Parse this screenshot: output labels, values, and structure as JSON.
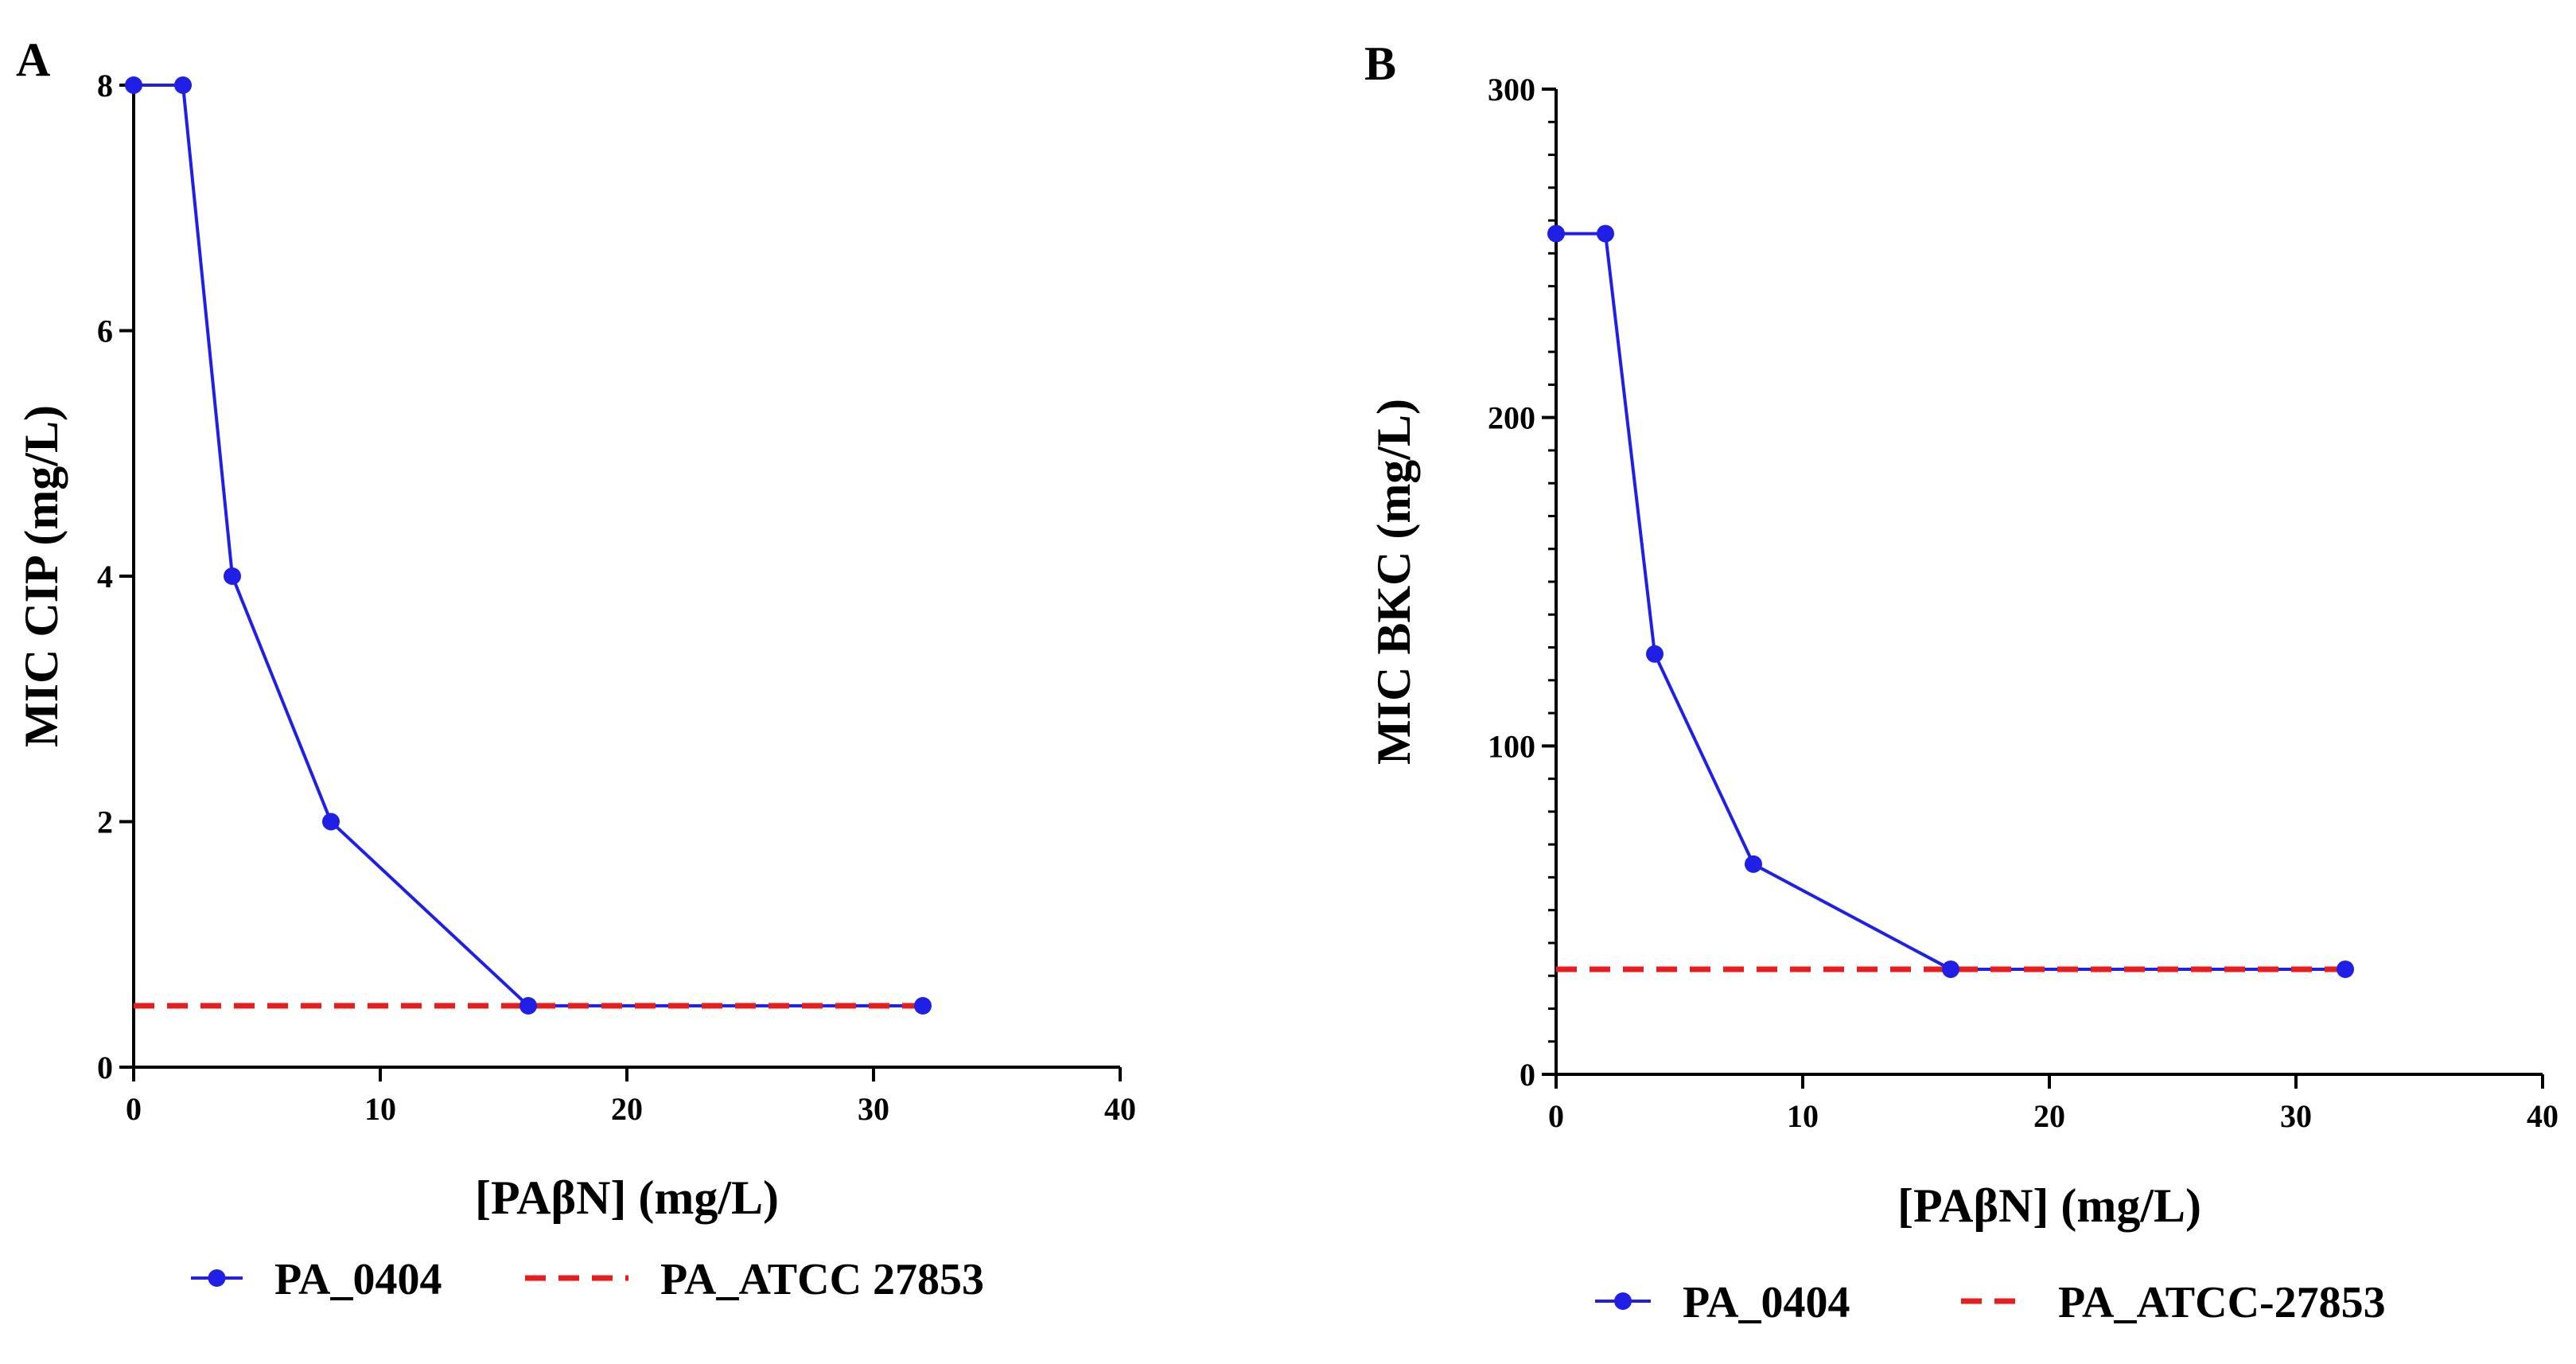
{
  "chart_data": [
    {
      "type": "line",
      "panel_label": "A",
      "xlabel": "[PAβN] (mg/L)",
      "ylabel": "MIC CIP (mg/L)",
      "xlim": [
        0,
        40
      ],
      "ylim": [
        0,
        8
      ],
      "x_ticks": [
        "0",
        "10",
        "20",
        "30",
        "40"
      ],
      "y_ticks": [
        "0",
        "2",
        "4",
        "6",
        "8"
      ],
      "legend_position": "bottom",
      "series": [
        {
          "name": "PA_0404",
          "style": "solid-markers",
          "color": "#1f1fe6",
          "x": [
            0,
            2,
            4,
            8,
            16,
            32
          ],
          "y": [
            8,
            8,
            4,
            2,
            0.5,
            0.5
          ]
        },
        {
          "name": "PA_ATCC 27853",
          "style": "dashed",
          "color": "#e61e1e",
          "x": [
            0,
            32
          ],
          "y": [
            0.5,
            0.5
          ]
        }
      ]
    },
    {
      "type": "line",
      "panel_label": "B",
      "xlabel": "[PAβN] (mg/L)",
      "ylabel": "MIC BKC (mg/L)",
      "xlim": [
        0,
        40
      ],
      "ylim": [
        0,
        300
      ],
      "x_ticks": [
        "0",
        "10",
        "20",
        "30",
        "40"
      ],
      "y_ticks": [
        "0",
        "100",
        "200",
        "300"
      ],
      "legend_position": "bottom",
      "series": [
        {
          "name": "PA_0404",
          "style": "solid-markers",
          "color": "#1f1fe6",
          "x": [
            0,
            2,
            4,
            8,
            16,
            32
          ],
          "y": [
            256,
            256,
            128,
            64,
            32,
            32
          ]
        },
        {
          "name": "PA_ATCC-27853",
          "style": "dashed",
          "color": "#e61e1e",
          "x": [
            0,
            32
          ],
          "y": [
            32,
            32
          ]
        }
      ]
    }
  ]
}
